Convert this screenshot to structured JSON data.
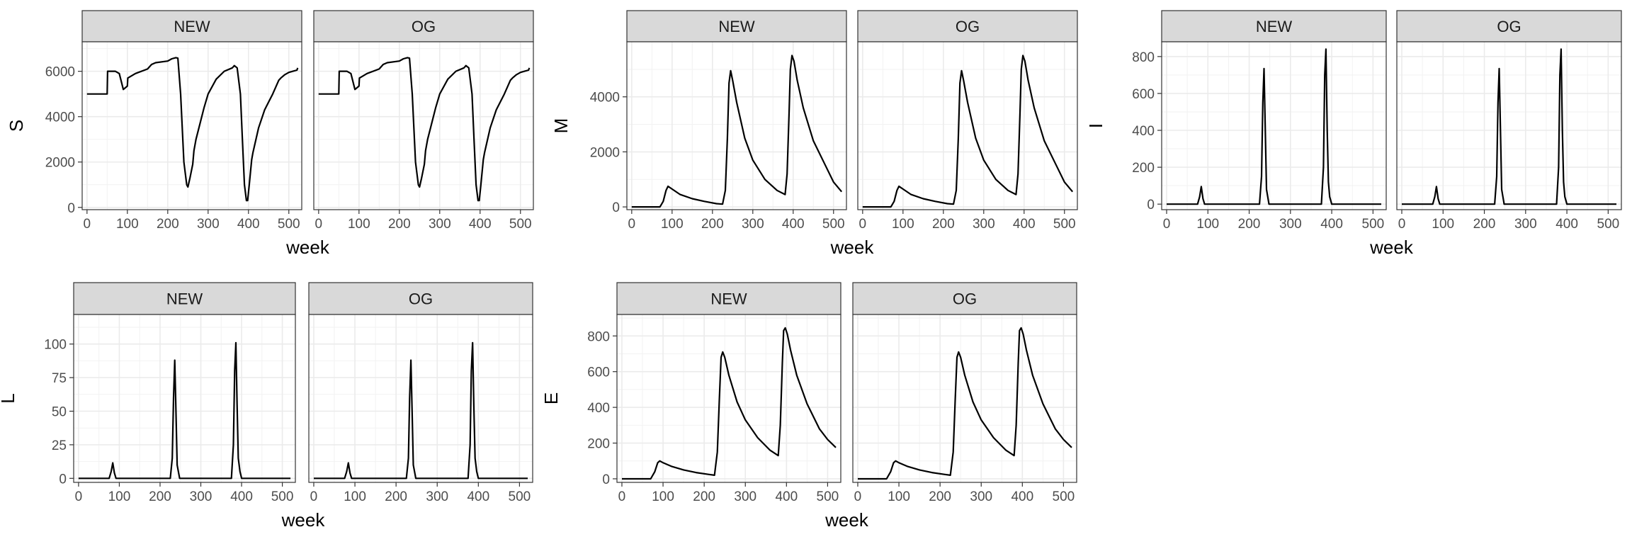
{
  "chart_data": [
    {
      "type": "line",
      "ylabel": "S",
      "xlabel": "week",
      "xlim": [
        -12,
        532
      ],
      "ylim": [
        -100,
        7300
      ],
      "x_ticks": [
        0,
        100,
        200,
        300,
        400,
        500
      ],
      "y_ticks": [
        0,
        2000,
        4000,
        6000
      ],
      "panels": [
        {
          "strip": "NEW",
          "series": [
            {
              "x": [
                0,
                50,
                51,
                70,
                80,
                90,
                100,
                101,
                120,
                150,
                160,
                170,
                200,
                210,
                220,
                225,
                232,
                240,
                247,
                250,
                255,
                262,
                265,
                270,
                280,
                290,
                300,
                320,
                340,
                360,
                365,
                372,
                380,
                385,
                390,
                395,
                398,
                402,
                408,
                411,
                416,
                425,
                440,
                460,
                475,
                480,
                490,
                500,
                510,
                520,
                522
              ],
              "values": [
                5000,
                5000,
                6000,
                6000,
                5900,
                5200,
                5350,
                5700,
                5900,
                6100,
                6300,
                6380,
                6450,
                6550,
                6600,
                6580,
                5000,
                2000,
                1000,
                900,
                1300,
                1900,
                2500,
                3000,
                3700,
                4400,
                5000,
                5650,
                6000,
                6150,
                6250,
                6150,
                5000,
                3000,
                1000,
                300,
                300,
                1000,
                2100,
                2400,
                2800,
                3500,
                4300,
                5000,
                5600,
                5700,
                5850,
                5950,
                6000,
                6050,
                6150
              ]
            }
          ]
        },
        {
          "strip": "OG",
          "series": [
            {
              "x": [
                0,
                50,
                51,
                70,
                80,
                90,
                100,
                101,
                120,
                150,
                160,
                170,
                200,
                210,
                220,
                225,
                232,
                240,
                247,
                250,
                255,
                262,
                265,
                270,
                280,
                290,
                300,
                320,
                340,
                360,
                365,
                372,
                380,
                385,
                390,
                395,
                398,
                402,
                408,
                411,
                416,
                425,
                440,
                460,
                475,
                480,
                490,
                500,
                510,
                520,
                522
              ],
              "values": [
                5000,
                5000,
                6000,
                6000,
                5900,
                5200,
                5350,
                5700,
                5900,
                6100,
                6300,
                6380,
                6450,
                6550,
                6600,
                6580,
                5000,
                2000,
                1000,
                900,
                1300,
                1900,
                2500,
                3000,
                3700,
                4400,
                5000,
                5650,
                6000,
                6150,
                6250,
                6150,
                5000,
                3000,
                1000,
                300,
                300,
                1000,
                2100,
                2400,
                2800,
                3500,
                4300,
                5000,
                5600,
                5700,
                5850,
                5950,
                6000,
                6050,
                6150
              ]
            }
          ]
        }
      ]
    },
    {
      "type": "line",
      "ylabel": "M",
      "xlabel": "week",
      "xlim": [
        -12,
        532
      ],
      "ylim": [
        -100,
        6000
      ],
      "x_ticks": [
        0,
        100,
        200,
        300,
        400,
        500
      ],
      "y_ticks": [
        0,
        2000,
        4000
      ],
      "panels": [
        {
          "strip": "NEW",
          "series": [
            {
              "x": [
                0,
                70,
                78,
                85,
                90,
                100,
                120,
                150,
                180,
                210,
                225,
                232,
                237,
                241,
                245,
                250,
                260,
                280,
                300,
                330,
                360,
                380,
                385,
                390,
                393,
                397,
                402,
                410,
                425,
                450,
                480,
                500,
                520
              ],
              "values": [
                0,
                0,
                200,
                600,
                750,
                650,
                450,
                300,
                200,
                120,
                100,
                600,
                2500,
                4500,
                4950,
                4600,
                3800,
                2500,
                1700,
                1000,
                600,
                450,
                1200,
                3500,
                5000,
                5500,
                5300,
                4600,
                3600,
                2400,
                1500,
                900,
                550
              ]
            }
          ]
        },
        {
          "strip": "OG",
          "series": [
            {
              "x": [
                0,
                70,
                78,
                85,
                90,
                100,
                120,
                150,
                180,
                210,
                225,
                232,
                237,
                241,
                245,
                250,
                260,
                280,
                300,
                330,
                360,
                380,
                385,
                390,
                393,
                397,
                402,
                410,
                425,
                450,
                480,
                500,
                520
              ],
              "values": [
                0,
                0,
                200,
                600,
                750,
                650,
                450,
                300,
                200,
                120,
                100,
                600,
                2500,
                4500,
                4950,
                4600,
                3800,
                2500,
                1700,
                1000,
                600,
                450,
                1200,
                3500,
                5000,
                5500,
                5300,
                4600,
                3600,
                2400,
                1500,
                900,
                550
              ]
            }
          ]
        }
      ]
    },
    {
      "type": "line",
      "ylabel": "I",
      "xlabel": "week",
      "xlim": [
        -12,
        532
      ],
      "ylim": [
        -30,
        880
      ],
      "x_ticks": [
        0,
        100,
        200,
        300,
        400,
        500
      ],
      "y_ticks": [
        0,
        200,
        400,
        600,
        800
      ],
      "panels": [
        {
          "strip": "NEW",
          "series": [
            {
              "x": [
                0,
                75,
                80,
                84,
                88,
                92,
                225,
                230,
                233,
                236,
                239,
                242,
                248,
                375,
                380,
                383,
                386,
                389,
                392,
                395,
                400,
                520
              ],
              "values": [
                0,
                0,
                40,
                95,
                30,
                0,
                0,
                150,
                550,
                735,
                400,
                80,
                0,
                0,
                200,
                700,
                840,
                400,
                120,
                40,
                0,
                0
              ]
            }
          ]
        },
        {
          "strip": "OG",
          "series": [
            {
              "x": [
                0,
                75,
                80,
                84,
                88,
                92,
                225,
                230,
                233,
                236,
                239,
                242,
                248,
                375,
                380,
                383,
                386,
                389,
                392,
                395,
                400,
                520
              ],
              "values": [
                0,
                0,
                40,
                95,
                30,
                0,
                0,
                150,
                550,
                735,
                400,
                80,
                0,
                0,
                200,
                700,
                840,
                400,
                120,
                40,
                0,
                0
              ]
            }
          ]
        }
      ]
    },
    {
      "type": "line",
      "ylabel": "L",
      "xlabel": "week",
      "xlim": [
        -12,
        532
      ],
      "ylim": [
        -3,
        122
      ],
      "x_ticks": [
        0,
        100,
        200,
        300,
        400,
        500
      ],
      "y_ticks": [
        0,
        25,
        50,
        75,
        100
      ],
      "panels": [
        {
          "strip": "NEW",
          "series": [
            {
              "x": [
                0,
                75,
                80,
                84,
                88,
                92,
                225,
                230,
                233,
                236,
                239,
                242,
                248,
                375,
                380,
                383,
                386,
                389,
                392,
                396,
                400,
                520
              ],
              "values": [
                0,
                0,
                5,
                11.5,
                4,
                0,
                0,
                15,
                60,
                88,
                50,
                10,
                0,
                0,
                25,
                80,
                101,
                55,
                15,
                5,
                0,
                0
              ]
            }
          ]
        },
        {
          "strip": "OG",
          "series": [
            {
              "x": [
                0,
                75,
                80,
                84,
                88,
                92,
                225,
                230,
                233,
                236,
                239,
                242,
                248,
                375,
                380,
                383,
                386,
                389,
                392,
                396,
                400,
                520
              ],
              "values": [
                0,
                0,
                5,
                11.5,
                4,
                0,
                0,
                15,
                60,
                88,
                50,
                10,
                0,
                0,
                25,
                80,
                101,
                55,
                15,
                5,
                0,
                0
              ]
            }
          ]
        }
      ]
    },
    {
      "type": "line",
      "ylabel": "E",
      "xlabel": "week",
      "xlim": [
        -12,
        532
      ],
      "ylim": [
        -20,
        920
      ],
      "x_ticks": [
        0,
        100,
        200,
        300,
        400,
        500
      ],
      "y_ticks": [
        0,
        200,
        400,
        600,
        800
      ],
      "panels": [
        {
          "strip": "NEW",
          "series": [
            {
              "x": [
                0,
                70,
                80,
                87,
                92,
                100,
                120,
                150,
                180,
                210,
                225,
                232,
                237,
                241,
                245,
                250,
                260,
                280,
                300,
                330,
                360,
                380,
                385,
                390,
                393,
                397,
                402,
                410,
                425,
                450,
                480,
                500,
                520
              ],
              "values": [
                0,
                0,
                40,
                90,
                100,
                90,
                70,
                50,
                35,
                25,
                20,
                150,
                450,
                680,
                710,
                680,
                580,
                430,
                330,
                230,
                160,
                130,
                300,
                650,
                830,
                845,
                810,
                720,
                580,
                420,
                280,
                220,
                175
              ]
            }
          ]
        },
        {
          "strip": "OG",
          "series": [
            {
              "x": [
                0,
                70,
                80,
                87,
                92,
                100,
                120,
                150,
                180,
                210,
                225,
                232,
                237,
                241,
                245,
                250,
                260,
                280,
                300,
                330,
                360,
                380,
                385,
                390,
                393,
                397,
                402,
                410,
                425,
                450,
                480,
                500,
                520
              ],
              "values": [
                0,
                0,
                40,
                90,
                100,
                90,
                70,
                50,
                35,
                25,
                20,
                150,
                450,
                680,
                710,
                680,
                580,
                430,
                330,
                230,
                160,
                130,
                300,
                650,
                830,
                845,
                810,
                720,
                580,
                420,
                280,
                220,
                175
              ]
            }
          ]
        }
      ]
    }
  ]
}
